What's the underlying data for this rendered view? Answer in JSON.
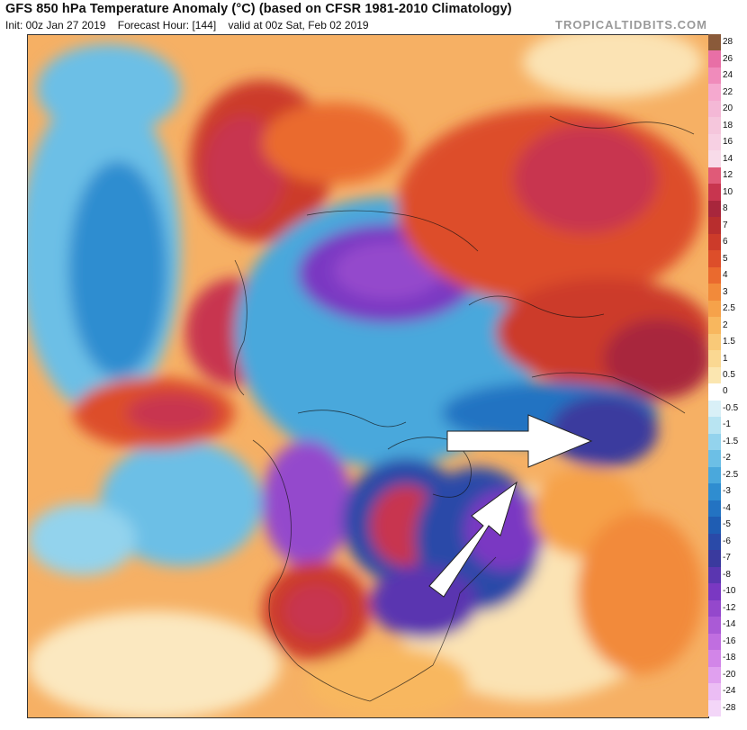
{
  "header": {
    "title": "GFS 850 hPa Temperature Anomaly (°C) (based on CFSR 1981-2010 Climatology)",
    "init": "Init: 00z Jan 27 2019",
    "forecast_hour": "Forecast Hour: [144]",
    "valid": "valid at 00z Sat, Feb 02 2019",
    "brand": "TROPICALTIDBITS.COM"
  },
  "colorbar": {
    "labels": [
      "28",
      "26",
      "24",
      "22",
      "20",
      "18",
      "16",
      "14",
      "12",
      "10",
      "8",
      "7",
      "6",
      "5",
      "4",
      "3",
      "2.5",
      "2",
      "1.5",
      "1",
      "0.5",
      "0",
      "-0.5",
      "-1",
      "-1.5",
      "-2",
      "-2.5",
      "-3",
      "-4",
      "-5",
      "-6",
      "-7",
      "-8",
      "-10",
      "-12",
      "-14",
      "-16",
      "-18",
      "-20",
      "-24",
      "-28"
    ],
    "colors": [
      "#8a5a3a",
      "#e86fa6",
      "#f08bbb",
      "#f5a9cf",
      "#f4b8d6",
      "#f5c6dc",
      "#f7d0e3",
      "#f8dbe9",
      "#e05a78",
      "#c8354f",
      "#a8263c",
      "#b82e2e",
      "#cc3b2a",
      "#dd4e2a",
      "#ea6a2e",
      "#f28a3a",
      "#f6a24a",
      "#f8b75e",
      "#f9c978",
      "#fad892",
      "#fbe6b0",
      "#ffffff",
      "#d9f0f7",
      "#b8e4f2",
      "#93d3ed",
      "#6cbfe6",
      "#4aa8dc",
      "#2f8dd0",
      "#2373c2",
      "#1f5db3",
      "#2a4aa8",
      "#3a3a9e",
      "#5a36b0",
      "#7a38c2",
      "#9448cc",
      "#aa5ad6",
      "#c06ee0",
      "#d285e8",
      "#e0a0ef",
      "#ebbdf4",
      "#f3d6f8"
    ]
  },
  "map": {
    "description_icons": [
      "arrow-right-icon",
      "arrow-up-right-icon"
    ]
  }
}
